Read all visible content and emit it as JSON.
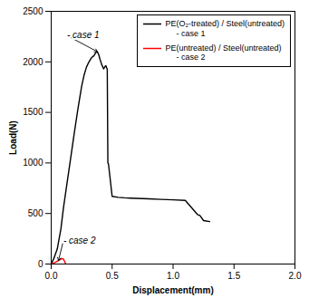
{
  "chart_data": {
    "type": "line",
    "xlabel": "Displacement(mm)",
    "ylabel": "Load(N)",
    "xlim": [
      0,
      2.0
    ],
    "ylim": [
      0,
      2500
    ],
    "xticks": [
      {
        "value": 0.0,
        "label": "0.0"
      },
      0.5,
      {
        "value": 1.0,
        "label": "1.0"
      },
      1.5,
      {
        "value": 2.0,
        "label": "2.0"
      }
    ],
    "yticks": [
      0,
      500,
      1000,
      1500,
      2000,
      2500
    ],
    "series": [
      {
        "name": "PE(O₂-treated) / Steel(untreated)\n- case 1",
        "color": "#000000",
        "x": [
          0.0,
          0.02,
          0.05,
          0.08,
          0.1,
          0.13,
          0.16,
          0.19,
          0.22,
          0.25,
          0.27,
          0.29,
          0.31,
          0.33,
          0.35,
          0.36,
          0.365,
          0.37,
          0.375,
          0.38,
          0.385,
          0.39,
          0.395,
          0.4,
          0.405,
          0.41,
          0.415,
          0.42,
          0.425,
          0.43,
          0.435,
          0.44,
          0.445,
          0.45,
          0.455,
          0.46,
          0.465,
          0.47,
          0.5,
          0.55,
          0.6,
          0.65,
          0.7,
          0.75,
          0.8,
          0.9,
          1.0,
          1.1,
          1.2,
          1.22,
          1.25,
          1.3
        ],
        "values": [
          0,
          50,
          150,
          350,
          550,
          800,
          1050,
          1300,
          1540,
          1760,
          1870,
          1950,
          2000,
          2040,
          2060,
          2080,
          2090,
          2095,
          2100,
          2095,
          2085,
          2070,
          2050,
          2025,
          2010,
          1990,
          1970,
          1960,
          1945,
          1930,
          1940,
          1950,
          1960,
          1960,
          1940,
          1930,
          1000,
          990,
          670,
          660,
          655,
          652,
          650,
          648,
          645,
          640,
          635,
          630,
          490,
          480,
          430,
          420
        ]
      },
      {
        "name": "PE(untreated) / Steel(untreated)\n- case 2",
        "color": "#ff0000",
        "x": [
          0.0,
          0.03,
          0.06,
          0.09,
          0.1,
          0.11,
          0.12
        ],
        "values": [
          0,
          15,
          35,
          55,
          50,
          25,
          0
        ]
      }
    ],
    "annotations": [
      {
        "text": "- case 1",
        "xy": [
          0.38,
          2100
        ],
        "xytext": [
          0.13,
          2260
        ]
      },
      {
        "text": "- case 2",
        "xy": [
          0.06,
          35
        ],
        "xytext": [
          0.1,
          230
        ]
      }
    ],
    "legend": "upper right"
  }
}
